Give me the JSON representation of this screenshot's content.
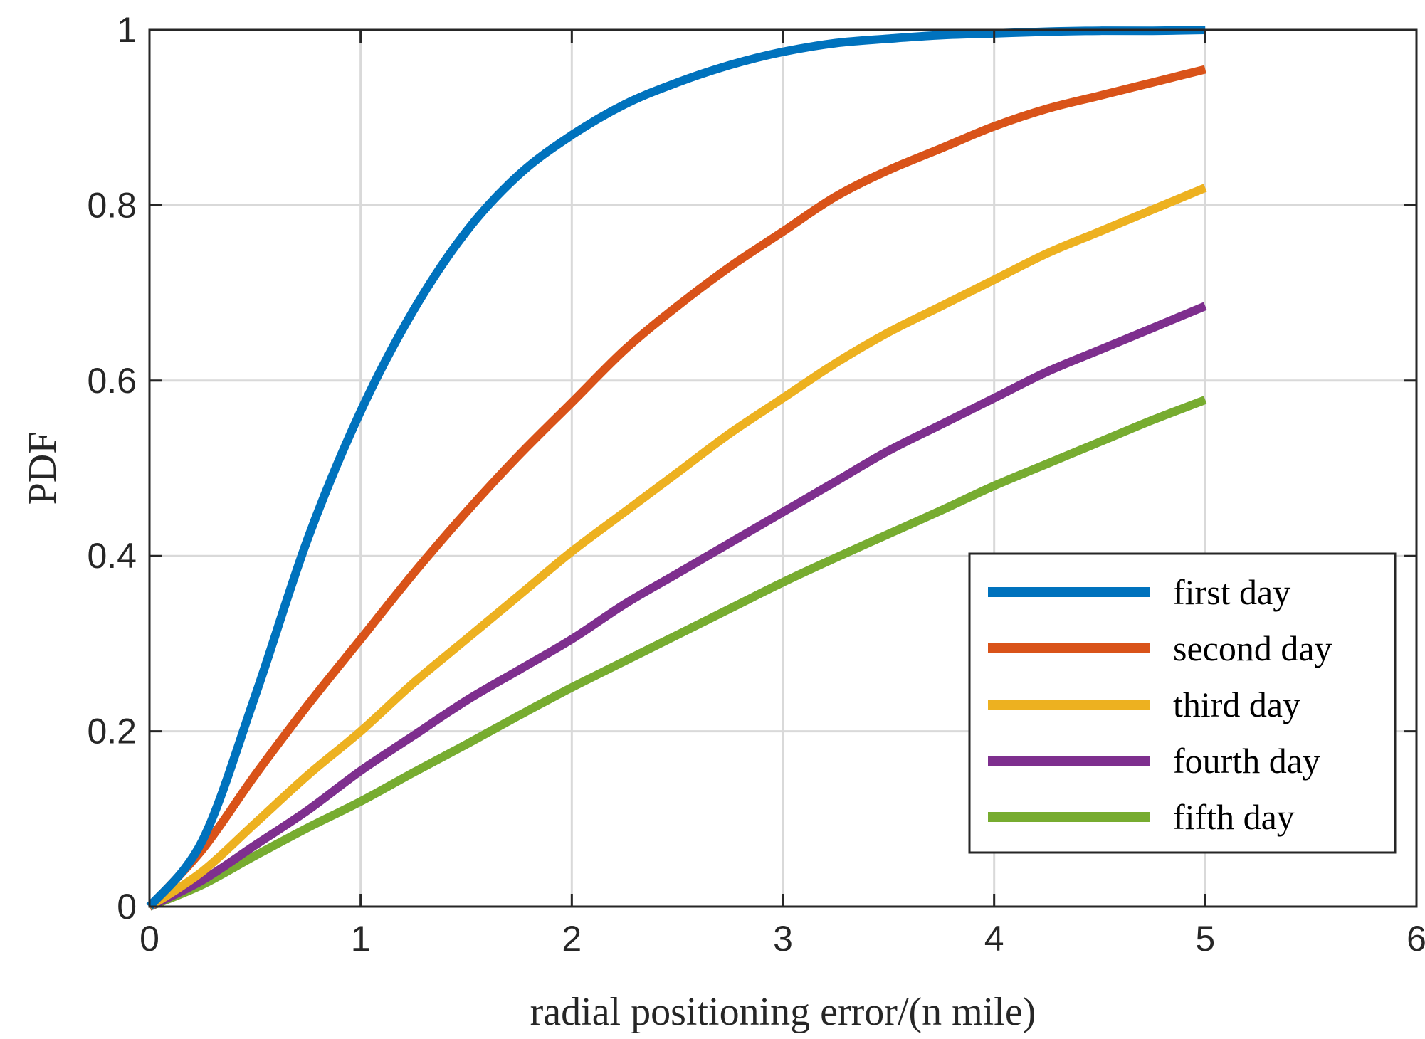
{
  "chart_data": {
    "type": "line",
    "title": "",
    "xlabel": "radial positioning error/(n mile)",
    "ylabel": "PDF",
    "xlim": [
      0,
      6
    ],
    "ylim": [
      0,
      1
    ],
    "xticks": [
      0,
      1,
      2,
      3,
      4,
      5,
      6
    ],
    "xtick_labels": [
      "0",
      "1",
      "2",
      "3",
      "4",
      "5",
      "6"
    ],
    "yticks": [
      0,
      0.2,
      0.4,
      0.6,
      0.8,
      1
    ],
    "ytick_labels": [
      "0",
      "0.2",
      "0.4",
      "0.6",
      "0.8",
      "1"
    ],
    "grid": true,
    "legend_position": "bottom-right",
    "x": [
      0,
      0.25,
      0.5,
      0.75,
      1.0,
      1.25,
      1.5,
      1.75,
      2.0,
      2.25,
      2.5,
      2.75,
      3.0,
      3.25,
      3.5,
      3.75,
      4.0,
      4.25,
      4.5,
      4.75,
      5.0
    ],
    "series": [
      {
        "name": "first day",
        "color": "#0072BD",
        "values": [
          0,
          0.075,
          0.24,
          0.42,
          0.565,
          0.68,
          0.77,
          0.835,
          0.88,
          0.915,
          0.94,
          0.96,
          0.975,
          0.985,
          0.99,
          0.994,
          0.996,
          0.998,
          0.999,
          0.999,
          1.0
        ]
      },
      {
        "name": "second day",
        "color": "#D95319",
        "values": [
          0,
          0.065,
          0.15,
          0.23,
          0.305,
          0.38,
          0.45,
          0.515,
          0.575,
          0.635,
          0.685,
          0.73,
          0.77,
          0.81,
          0.84,
          0.865,
          0.89,
          0.91,
          0.925,
          0.94,
          0.955
        ]
      },
      {
        "name": "third day",
        "color": "#EDB120",
        "values": [
          0,
          0.04,
          0.095,
          0.15,
          0.2,
          0.255,
          0.305,
          0.355,
          0.405,
          0.45,
          0.495,
          0.54,
          0.58,
          0.62,
          0.655,
          0.685,
          0.715,
          0.745,
          0.77,
          0.795,
          0.82
        ]
      },
      {
        "name": "fourth day",
        "color": "#7E2F8E",
        "values": [
          0,
          0.03,
          0.07,
          0.11,
          0.155,
          0.195,
          0.235,
          0.27,
          0.305,
          0.345,
          0.38,
          0.415,
          0.45,
          0.485,
          0.52,
          0.55,
          0.58,
          0.61,
          0.635,
          0.66,
          0.685
        ]
      },
      {
        "name": "fifth day",
        "color": "#77AC30",
        "values": [
          0,
          0.025,
          0.058,
          0.09,
          0.12,
          0.153,
          0.185,
          0.218,
          0.25,
          0.28,
          0.31,
          0.34,
          0.37,
          0.398,
          0.425,
          0.452,
          0.48,
          0.505,
          0.53,
          0.555,
          0.578
        ]
      }
    ]
  }
}
